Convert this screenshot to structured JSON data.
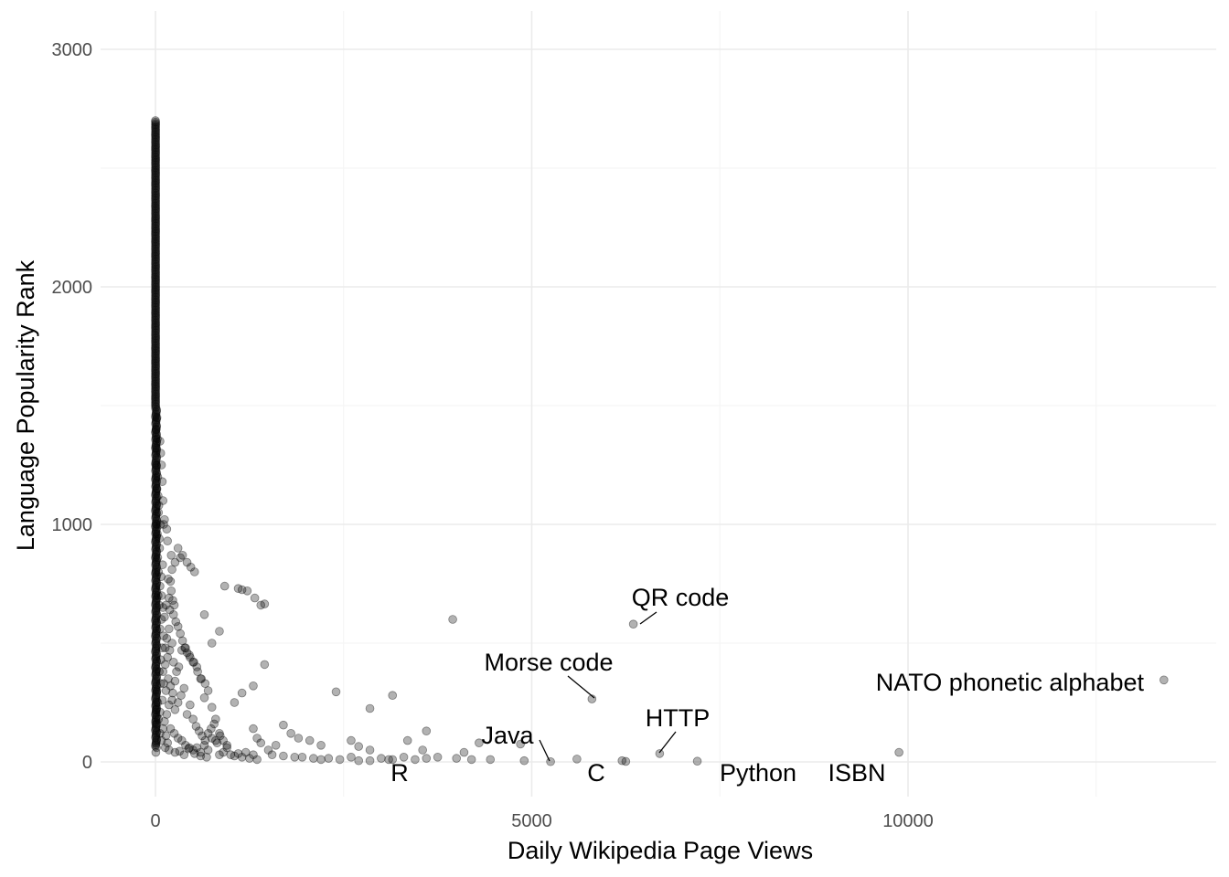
{
  "chart_data": {
    "type": "scatter",
    "title": "",
    "xlabel": "Daily Wikipedia Page Views",
    "ylabel": "Language Popularity Rank",
    "xlim": [
      -750,
      14050
    ],
    "ylim": [
      -150,
      3150
    ],
    "x_ticks": [
      0,
      5000,
      10000
    ],
    "x_tick_labels": [
      "0",
      "5000",
      "10000"
    ],
    "y_ticks": [
      0,
      1000,
      2000,
      3000
    ],
    "y_tick_labels": [
      "0",
      "1000",
      "2000",
      "3000"
    ],
    "grid": true,
    "legend": "none",
    "colors": {
      "point": "#000000",
      "grid_major": "#ebebeb",
      "grid_minor": "#f5f5f5",
      "tick_text": "#4d4d4d"
    },
    "labeled_points": [
      {
        "label": "NATO phonetic alphabet",
        "x": 13400,
        "y": 345
      },
      {
        "label": "ISBN",
        "x": 9880,
        "y": 40
      },
      {
        "label": "Python",
        "x": 7200,
        "y": 3
      },
      {
        "label": "HTTP",
        "x": 6700,
        "y": 35
      },
      {
        "label": "QR code",
        "x": 6350,
        "y": 580
      },
      {
        "label": "C",
        "x": 6250,
        "y": 2
      },
      {
        "label": "Morse code",
        "x": 5800,
        "y": 265
      },
      {
        "label": "Java",
        "x": 5250,
        "y": 1
      },
      {
        "label": "R",
        "x": 3100,
        "y": 10
      }
    ],
    "points": [
      [
        3950,
        600
      ],
      [
        3150,
        280
      ],
      [
        2400,
        295
      ],
      [
        2850,
        225
      ],
      [
        1450,
        665
      ],
      [
        1400,
        660
      ],
      [
        1450,
        410
      ],
      [
        1320,
        690
      ],
      [
        1220,
        720
      ],
      [
        1150,
        725
      ],
      [
        1100,
        730
      ],
      [
        920,
        740
      ],
      [
        850,
        550
      ],
      [
        750,
        500
      ],
      [
        650,
        620
      ],
      [
        1300,
        320
      ],
      [
        1150,
        290
      ],
      [
        1050,
        250
      ],
      [
        1700,
        155
      ],
      [
        1800,
        120
      ],
      [
        1900,
        100
      ],
      [
        2050,
        90
      ],
      [
        2200,
        70
      ],
      [
        2600,
        90
      ],
      [
        2700,
        65
      ],
      [
        2850,
        50
      ],
      [
        3350,
        90
      ],
      [
        3600,
        130
      ],
      [
        3550,
        50
      ],
      [
        4100,
        40
      ],
      [
        4300,
        80
      ],
      [
        4850,
        75
      ],
      [
        1300,
        140
      ],
      [
        1350,
        100
      ],
      [
        1400,
        80
      ],
      [
        1600,
        70
      ],
      [
        1500,
        50
      ],
      [
        1550,
        30
      ],
      [
        1700,
        25
      ],
      [
        1850,
        20
      ],
      [
        1950,
        20
      ],
      [
        2100,
        15
      ],
      [
        2200,
        10
      ],
      [
        2300,
        15
      ],
      [
        2450,
        10
      ],
      [
        2600,
        20
      ],
      [
        2700,
        5
      ],
      [
        2850,
        5
      ],
      [
        3000,
        15
      ],
      [
        3150,
        10
      ],
      [
        3300,
        20
      ],
      [
        3450,
        10
      ],
      [
        3600,
        15
      ],
      [
        3750,
        20
      ],
      [
        4000,
        15
      ],
      [
        4200,
        10
      ],
      [
        4450,
        10
      ],
      [
        4900,
        5
      ],
      [
        5600,
        12
      ],
      [
        6200,
        5
      ],
      [
        1000,
        30
      ],
      [
        1050,
        25
      ],
      [
        1100,
        35
      ],
      [
        1150,
        20
      ],
      [
        1200,
        40
      ],
      [
        1250,
        15
      ],
      [
        1300,
        30
      ],
      [
        1350,
        10
      ],
      [
        950,
        60
      ],
      [
        900,
        90
      ],
      [
        850,
        120
      ],
      [
        800,
        180
      ],
      [
        750,
        230
      ],
      [
        700,
        300
      ],
      [
        650,
        270
      ],
      [
        600,
        350
      ],
      [
        550,
        400
      ],
      [
        500,
        420
      ],
      [
        450,
        450
      ],
      [
        400,
        480
      ],
      [
        350,
        470
      ],
      [
        300,
        900
      ],
      [
        330,
        860
      ],
      [
        360,
        870
      ],
      [
        420,
        840
      ],
      [
        470,
        820
      ],
      [
        520,
        800
      ],
      [
        260,
        840
      ],
      [
        220,
        810
      ],
      [
        210,
        870
      ],
      [
        160,
        930
      ],
      [
        150,
        980
      ],
      [
        120,
        1020
      ],
      [
        100,
        1100
      ],
      [
        90,
        1180
      ],
      [
        80,
        1250
      ],
      [
        70,
        1300
      ],
      [
        60,
        1350
      ],
      [
        110,
        1000
      ],
      [
        170,
        770
      ],
      [
        180,
        690
      ],
      [
        190,
        640
      ],
      [
        240,
        620
      ],
      [
        270,
        590
      ],
      [
        300,
        570
      ],
      [
        330,
        540
      ],
      [
        360,
        510
      ],
      [
        390,
        480
      ],
      [
        420,
        460
      ],
      [
        460,
        440
      ],
      [
        510,
        420
      ],
      [
        560,
        380
      ],
      [
        610,
        350
      ],
      [
        660,
        330
      ],
      [
        210,
        720
      ],
      [
        230,
        680
      ],
      [
        250,
        660
      ],
      [
        200,
        760
      ],
      [
        200,
        140
      ],
      [
        250,
        120
      ],
      [
        300,
        100
      ],
      [
        350,
        90
      ],
      [
        400,
        70
      ],
      [
        450,
        60
      ],
      [
        500,
        50
      ],
      [
        550,
        60
      ],
      [
        600,
        40
      ],
      [
        650,
        70
      ],
      [
        700,
        50
      ],
      [
        750,
        100
      ],
      [
        800,
        90
      ],
      [
        850,
        30
      ],
      [
        900,
        40
      ],
      [
        950,
        70
      ],
      [
        150,
        200
      ],
      [
        180,
        240
      ],
      [
        220,
        260
      ],
      [
        260,
        220
      ],
      [
        300,
        250
      ],
      [
        340,
        280
      ],
      [
        380,
        310
      ],
      [
        420,
        200
      ],
      [
        460,
        240
      ],
      [
        500,
        180
      ],
      [
        540,
        150
      ],
      [
        580,
        130
      ],
      [
        620,
        110
      ],
      [
        660,
        90
      ],
      [
        700,
        120
      ],
      [
        740,
        140
      ],
      [
        780,
        160
      ],
      [
        820,
        80
      ],
      [
        860,
        110
      ],
      [
        180,
        50
      ],
      [
        130,
        60
      ],
      [
        260,
        40
      ],
      [
        320,
        45
      ],
      [
        380,
        30
      ],
      [
        440,
        55
      ],
      [
        520,
        35
      ],
      [
        600,
        25
      ],
      [
        680,
        20
      ],
      [
        5,
        40
      ],
      [
        5,
        160
      ],
      [
        10,
        220
      ],
      [
        20,
        300
      ],
      [
        30,
        250
      ],
      [
        40,
        180
      ],
      [
        60,
        120
      ],
      [
        80,
        90
      ],
      [
        100,
        140
      ],
      [
        120,
        170
      ],
      [
        140,
        110
      ],
      [
        160,
        80
      ],
      [
        60,
        210
      ],
      [
        90,
        260
      ],
      [
        110,
        330
      ],
      [
        50,
        380
      ],
      [
        70,
        430
      ],
      [
        130,
        480
      ],
      [
        150,
        520
      ],
      [
        180,
        560
      ],
      [
        120,
        610
      ],
      [
        100,
        650
      ],
      [
        80,
        700
      ],
      [
        60,
        740
      ],
      [
        40,
        800
      ],
      [
        30,
        860
      ],
      [
        50,
        940
      ],
      [
        20,
        1000
      ],
      [
        40,
        1050
      ],
      [
        20,
        1150
      ],
      [
        30,
        1200
      ],
      [
        10,
        1250
      ],
      [
        100,
        380
      ],
      [
        130,
        410
      ],
      [
        160,
        440
      ],
      [
        190,
        470
      ],
      [
        220,
        500
      ],
      [
        240,
        420
      ],
      [
        170,
        350
      ],
      [
        200,
        320
      ],
      [
        230,
        290
      ],
      [
        260,
        340
      ],
      [
        280,
        380
      ],
      [
        310,
        400
      ],
      [
        140,
        300
      ],
      [
        70,
        330
      ],
      [
        90,
        480
      ],
      [
        60,
        560
      ],
      [
        110,
        530
      ],
      [
        80,
        600
      ],
      [
        50,
        660
      ],
      [
        140,
        660
      ],
      [
        35,
        700
      ],
      [
        75,
        780
      ],
      [
        95,
        830
      ],
      [
        55,
        900
      ],
      [
        25,
        960
      ],
      [
        65,
        1000
      ],
      [
        45,
        1080
      ],
      [
        35,
        1120
      ],
      [
        15,
        1320
      ],
      [
        25,
        1360
      ],
      [
        10,
        1400
      ],
      [
        20,
        1450
      ]
    ]
  }
}
